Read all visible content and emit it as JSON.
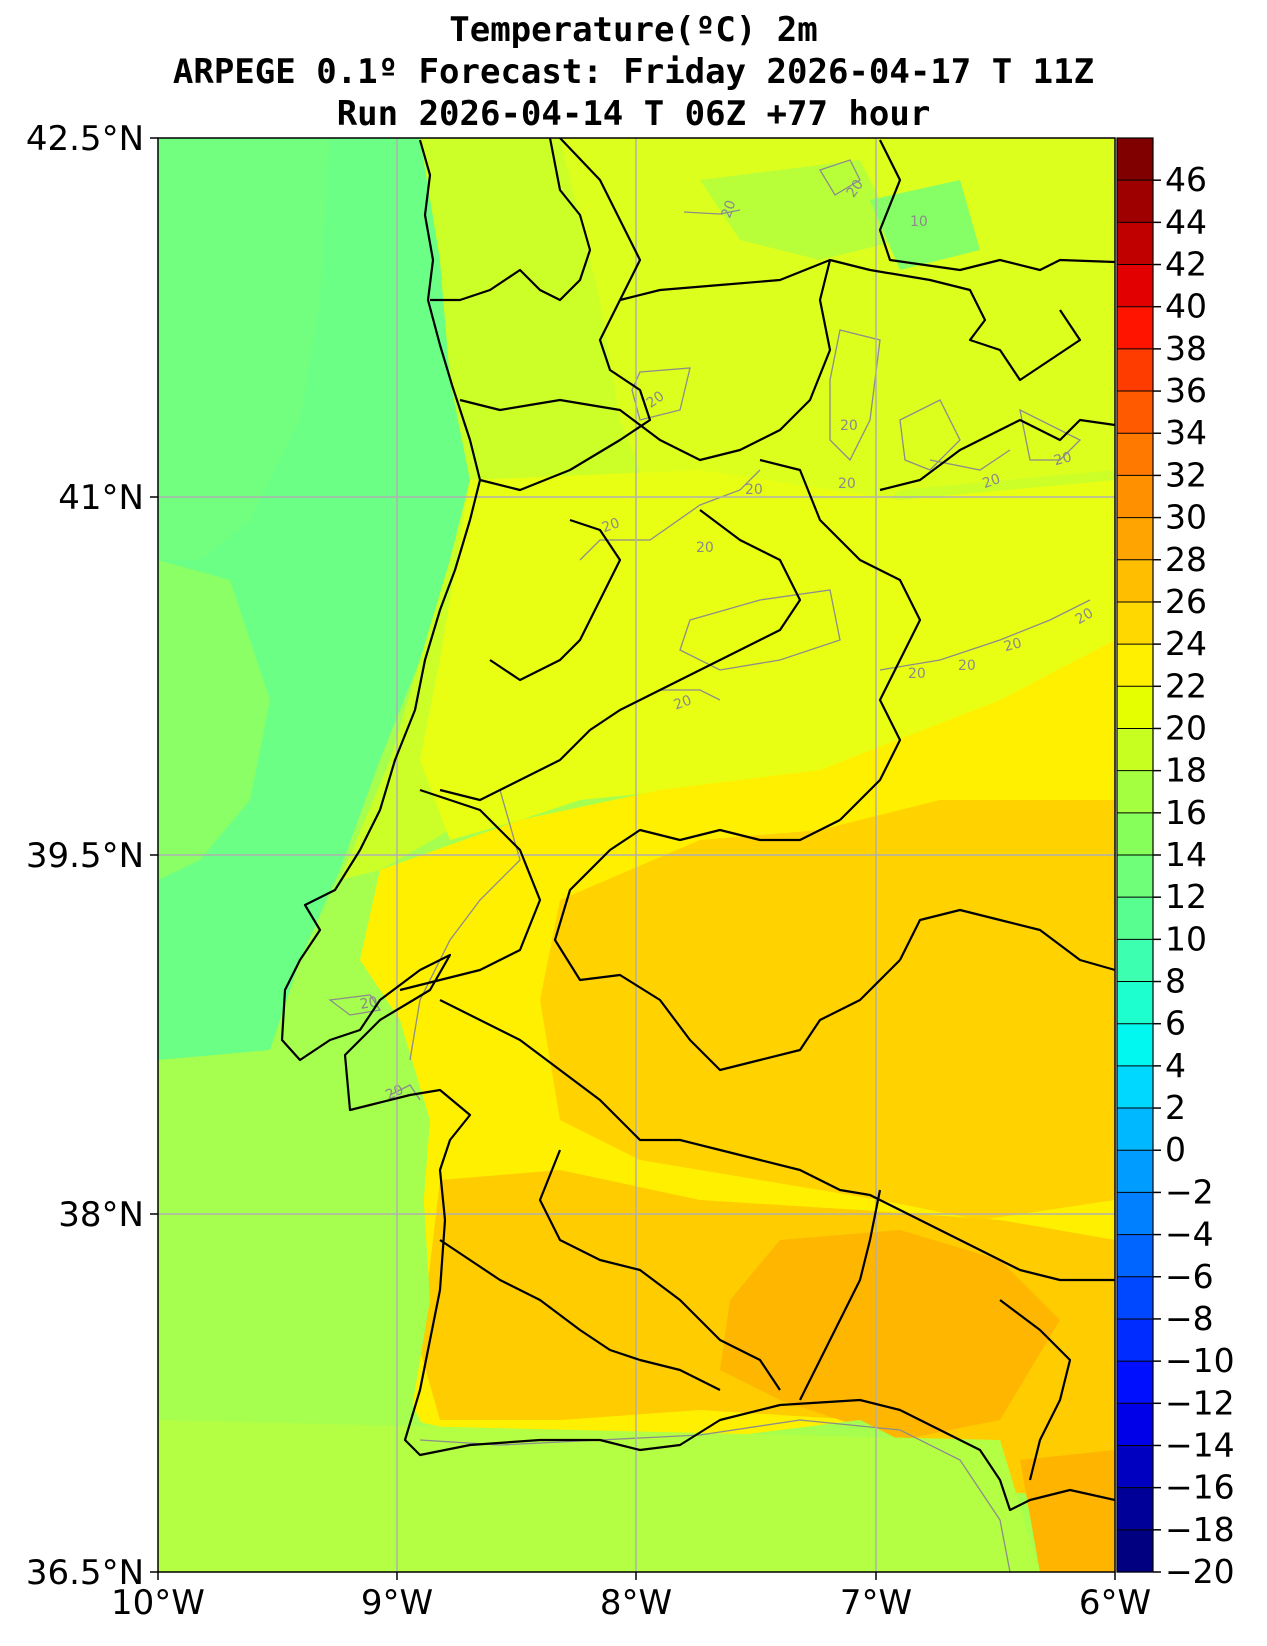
{
  "title": {
    "line1": "Temperature(ºC) 2m",
    "line2": "ARPEGE 0.1º Forecast: Friday 2026-04-17 T 11Z",
    "line3": "Run 2026-04-14 T 06Z +77 hour"
  },
  "axes": {
    "lat_labels": [
      "42.5°N",
      "41°N",
      "39.5°N",
      "38°N",
      "36.5°N"
    ],
    "lon_labels": [
      "10°W",
      "9°W",
      "8°W",
      "7°W",
      "6°W"
    ],
    "lat_range": [
      36.5,
      42.5
    ],
    "lon_range": [
      -10,
      -6
    ],
    "grid": true
  },
  "colorbar": {
    "labels": [
      "46",
      "44",
      "42",
      "40",
      "38",
      "36",
      "34",
      "32",
      "30",
      "28",
      "26",
      "24",
      "22",
      "20",
      "18",
      "16",
      "14",
      "12",
      "10",
      "8",
      "6",
      "4",
      "2",
      "0",
      "−2",
      "−4",
      "−6",
      "−8",
      "−10",
      "−12",
      "−14",
      "−16",
      "−18",
      "−20"
    ],
    "colors": [
      "#800000",
      "#9e0000",
      "#c00000",
      "#e20000",
      "#ff1400",
      "#ff3c00",
      "#ff5a00",
      "#ff7800",
      "#ff9000",
      "#ffa400",
      "#ffbe00",
      "#ffd800",
      "#fff000",
      "#e6ff00",
      "#c6ff20",
      "#a4ff40",
      "#86ff5a",
      "#70ff78",
      "#58ff90",
      "#3cffb0",
      "#1effd0",
      "#00f8f0",
      "#00d8ff",
      "#00b8ff",
      "#009cff",
      "#0080ff",
      "#0064ff",
      "#0048ff",
      "#002cff",
      "#0010ff",
      "#0000e8",
      "#0000c0",
      "#000098",
      "#000080"
    ]
  },
  "map": {
    "contour_labels": [
      "20",
      "20",
      "20",
      "20",
      "20",
      "20",
      "20",
      "20",
      "20",
      "20",
      "20",
      "20",
      "20",
      "20",
      "20",
      "20",
      "20",
      "10"
    ],
    "colors": {
      "sea_cool": "#66ff88",
      "sea_mild": "#a8ff50",
      "land_north": "#d8ff20",
      "land_yellow": "#fff000",
      "land_warm": "#ffd000",
      "land_hot": "#ffb800",
      "border": "#000000",
      "grid": "#b0b0b0",
      "contour": "#8c8c8c"
    }
  }
}
